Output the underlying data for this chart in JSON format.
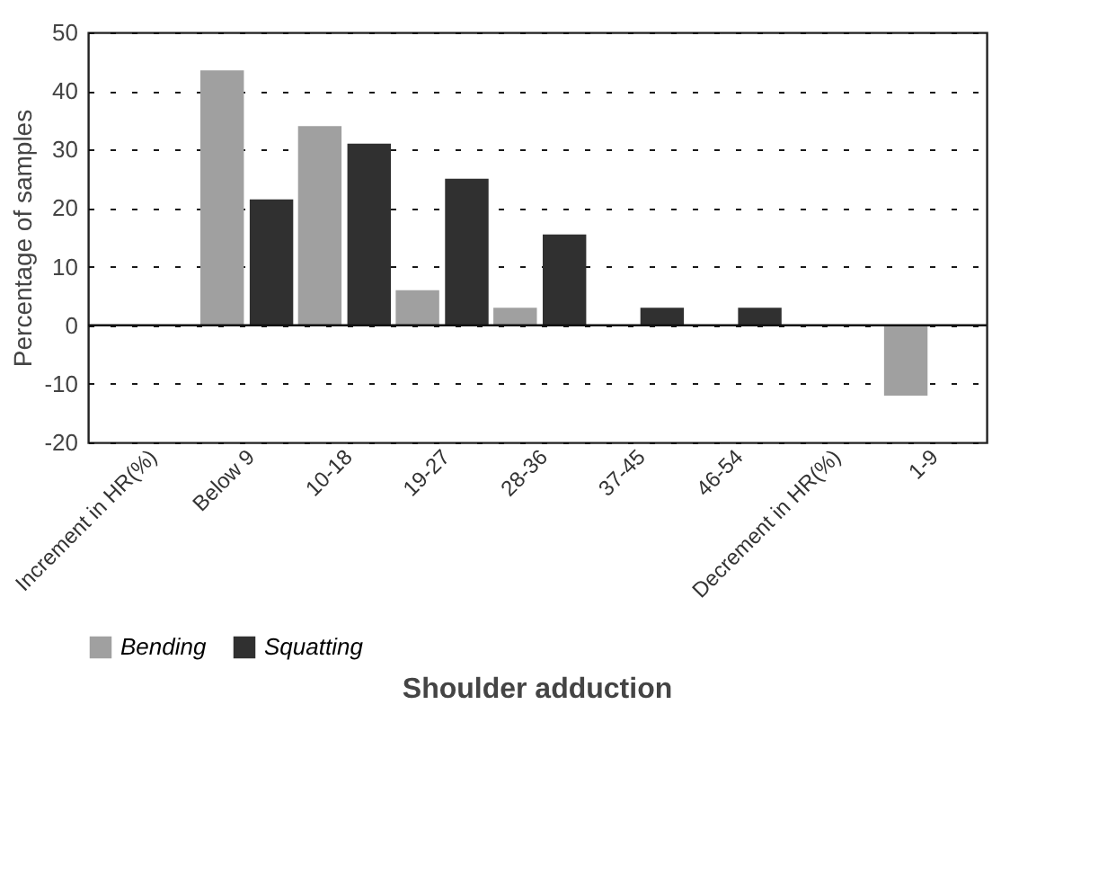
{
  "chart_data": {
    "type": "bar",
    "xlabel": "Shoulder adduction",
    "ylabel": "Percentage of samples",
    "categories": [
      "Increment in HR(%)",
      "Below 9",
      "10-18",
      "19-27",
      "28-36",
      "37-45",
      "46-54",
      "Decrement in HR(%)",
      "1-9"
    ],
    "series": [
      {
        "name": "Bending",
        "color": "#a0a0a0",
        "values": [
          null,
          43.5,
          34,
          6,
          3,
          null,
          null,
          null,
          -12
        ]
      },
      {
        "name": "Squatting",
        "color": "#303030",
        "values": [
          null,
          21.5,
          31,
          25,
          15.5,
          3,
          3,
          null,
          null
        ]
      }
    ],
    "ylim": [
      -20,
      50
    ],
    "yticks": [
      -20,
      -10,
      0,
      10,
      20,
      30,
      40,
      50
    ],
    "grid": "y",
    "legend": "bottom"
  }
}
